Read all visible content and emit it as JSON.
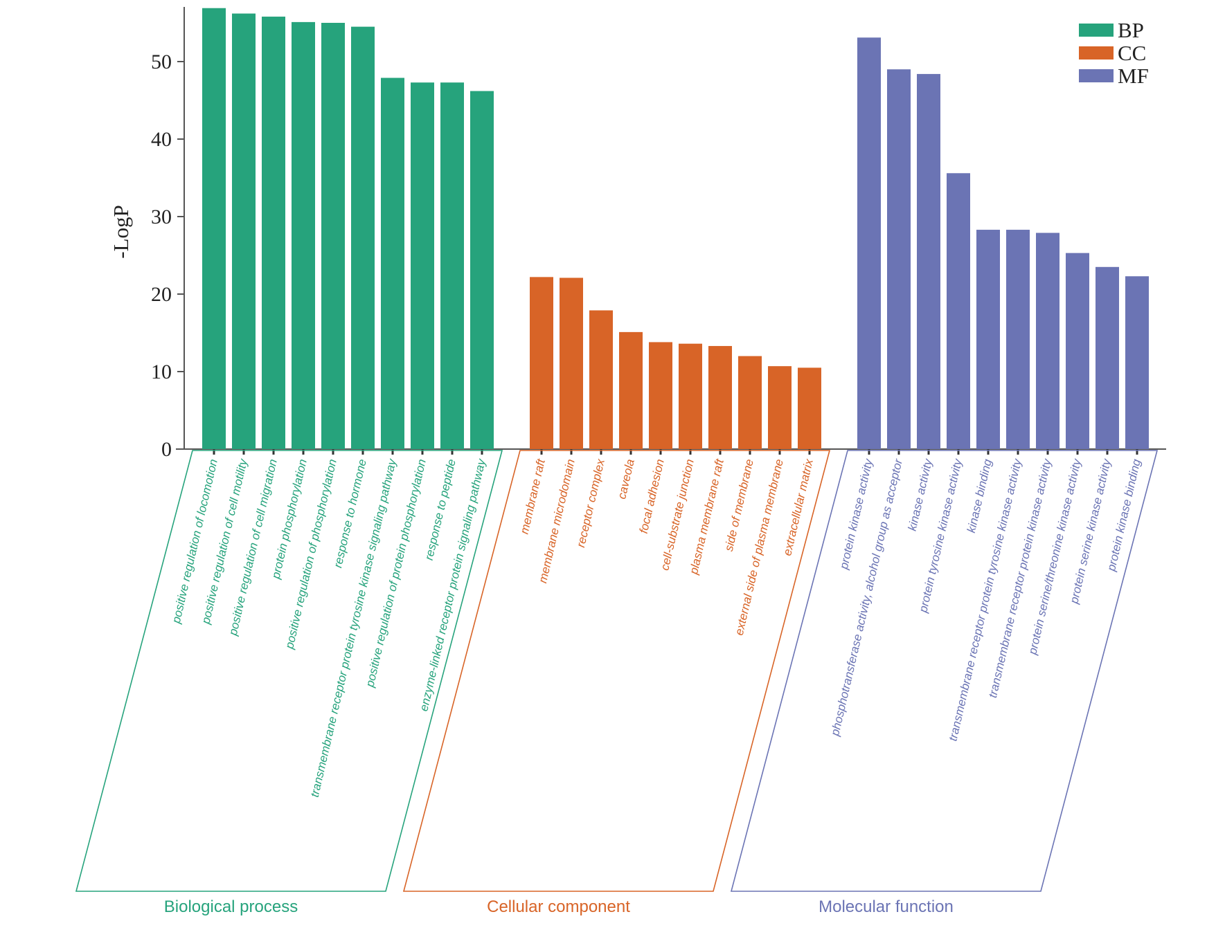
{
  "colors": {
    "BP": "#26a37c",
    "CC": "#d86427",
    "MF": "#6b74b4"
  },
  "chart_data": {
    "type": "bar",
    "ylabel": "-LogP",
    "ylim": [
      0,
      57
    ],
    "yticks": [
      0,
      10,
      20,
      30,
      40,
      50
    ],
    "legend": [
      {
        "key": "BP",
        "label": "BP"
      },
      {
        "key": "CC",
        "label": "CC"
      },
      {
        "key": "MF",
        "label": "MF"
      }
    ],
    "legend_position": "top-right",
    "groups": [
      {
        "key": "BP",
        "name": "Biological process",
        "categories": [
          "positive regulation of locomotion",
          "positive regulation of cell motility",
          "positive regulation of cell migration",
          "protein phosphorylation",
          "positive regulation of phosphorylation",
          "response to hormone",
          "transmembrane receptor protein tyrosine kinase signaling pathway",
          "positive regulation of protein phosphorylation",
          "response to peptide",
          "enzyme-linked receptor protein signaling pathway"
        ],
        "values": [
          56.9,
          56.2,
          55.8,
          55.1,
          55.0,
          54.5,
          47.9,
          47.3,
          47.3,
          46.2
        ]
      },
      {
        "key": "CC",
        "name": "Cellular component",
        "categories": [
          "membrane raft",
          "membrane microdomain",
          "receptor complex",
          "caveola",
          "focal adhesion",
          "cell-substrate junction",
          "plasma membrane raft",
          "side of membrane",
          "external side of plasma membrane",
          "extracellular matrix"
        ],
        "values": [
          22.2,
          22.1,
          17.9,
          15.1,
          13.8,
          13.6,
          13.3,
          12.0,
          10.7,
          10.5
        ]
      },
      {
        "key": "MF",
        "name": "Molecular function",
        "categories": [
          "protein kinase activity",
          "phosphotransferase activity, alcohol group as acceptor",
          "kinase activity",
          "protein tyrosine kinase activity",
          "kinase binding",
          "transmembrane receptor protein tyrosine kinase activity",
          "transmembrane receptor protein kinase activity",
          "protein serine/threonine kinase activity",
          "protein serine kinase activity",
          "protein kinase binding"
        ],
        "values": [
          53.1,
          49.0,
          48.4,
          35.6,
          28.3,
          28.3,
          27.9,
          25.3,
          23.5,
          22.3
        ]
      }
    ]
  }
}
